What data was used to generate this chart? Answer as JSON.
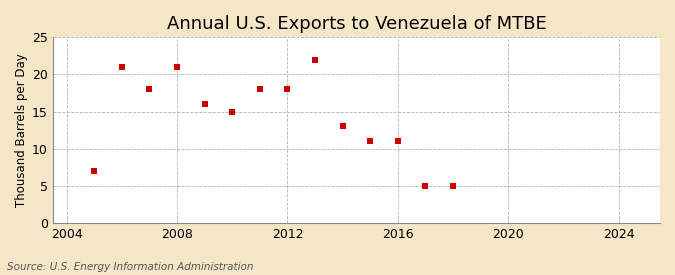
{
  "title": "Annual U.S. Exports to Venezuela of MTBE",
  "ylabel": "Thousand Barrels per Day",
  "source": "Source: U.S. Energy Information Administration",
  "figure_bg": "#f5e6c8",
  "plot_bg": "#ffffff",
  "years": [
    2005,
    2006,
    2007,
    2008,
    2009,
    2010,
    2011,
    2012,
    2013,
    2014,
    2015,
    2016,
    2017,
    2018
  ],
  "values": [
    7,
    21,
    18,
    21,
    16,
    15,
    18,
    18,
    22,
    13,
    11,
    11,
    5,
    5
  ],
  "marker_color": "#cc0000",
  "marker_style": "s",
  "marker_size": 18,
  "xlim": [
    2003.5,
    2025.5
  ],
  "ylim": [
    0,
    25
  ],
  "yticks": [
    0,
    5,
    10,
    15,
    20,
    25
  ],
  "xticks": [
    2004,
    2008,
    2012,
    2016,
    2020,
    2024
  ],
  "grid_color": "#aaaaaa",
  "grid_linestyle": "--",
  "title_fontsize": 13,
  "label_fontsize": 8.5,
  "tick_fontsize": 9,
  "source_fontsize": 7.5
}
